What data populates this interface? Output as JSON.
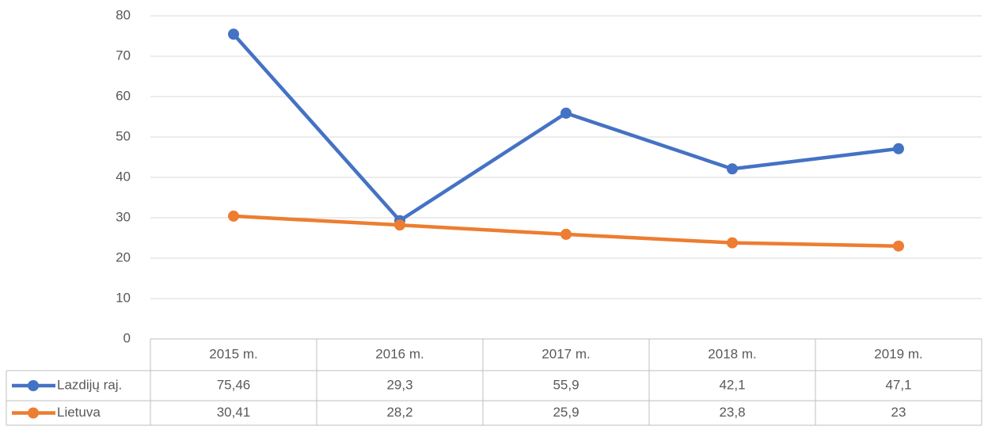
{
  "chart_data": {
    "type": "line",
    "categories": [
      "2015 m.",
      "2016 m.",
      "2017 m.",
      "2018 m.",
      "2019 m."
    ],
    "series": [
      {
        "name": "Lazdijų raj.",
        "color": "#4472c4",
        "values": [
          75.46,
          29.3,
          55.9,
          42.1,
          47.1
        ],
        "value_labels": [
          "75,46",
          "29,3",
          "55,9",
          "42,1",
          "47,1"
        ]
      },
      {
        "name": "Lietuva",
        "color": "#ed7d31",
        "values": [
          30.41,
          28.2,
          25.9,
          23.8,
          23
        ],
        "value_labels": [
          "30,41",
          "28,2",
          "25,9",
          "23,8",
          "23"
        ]
      }
    ],
    "ylim": [
      0,
      80
    ],
    "yticks": [
      0,
      10,
      20,
      30,
      40,
      50,
      60,
      70,
      80
    ],
    "grid": true
  }
}
